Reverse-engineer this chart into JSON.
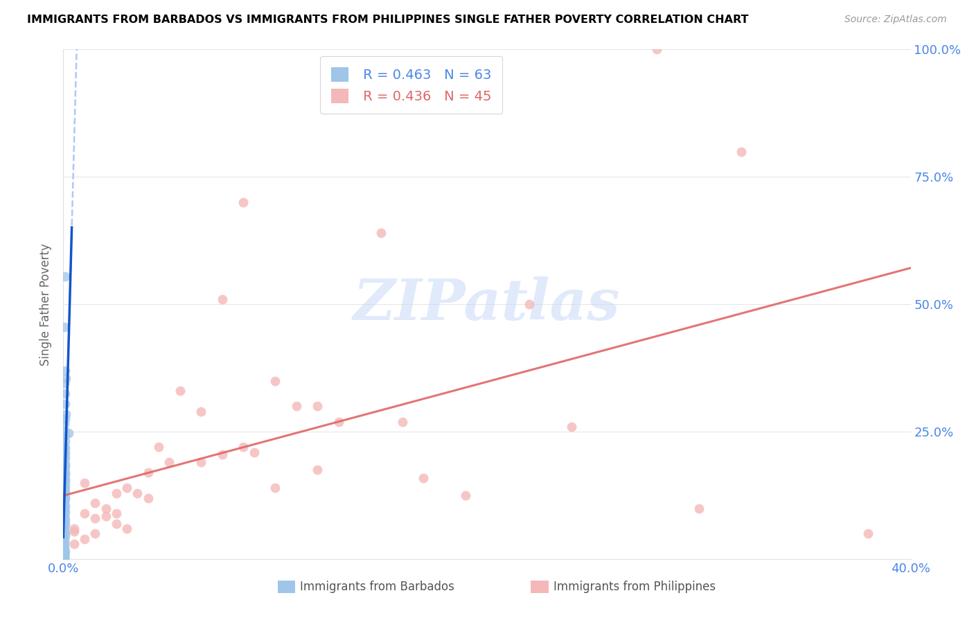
{
  "title": "IMMIGRANTS FROM BARBADOS VS IMMIGRANTS FROM PHILIPPINES SINGLE FATHER POVERTY CORRELATION CHART",
  "source": "Source: ZipAtlas.com",
  "ylabel": "Single Father Poverty",
  "legend_label1": "Immigrants from Barbados",
  "legend_label2": "Immigrants from Philippines",
  "r1": 0.463,
  "n1": 63,
  "r2": 0.436,
  "n2": 45,
  "color1": "#9fc5e8",
  "color2": "#f4b8b8",
  "trendline1_dashed_color": "#a4c2f4",
  "trendline1_solid_color": "#1155cc",
  "trendline2_color": "#e06666",
  "axis_label_color": "#4a86e8",
  "grid_color": "#e0e0e0",
  "background_color": "#ffffff",
  "watermark_text": "ZIPatlas",
  "watermark_color": "#c9daf8",
  "title_color": "#000000",
  "source_color": "#999999",
  "ylabel_color": "#666666",
  "bottom_label_color": "#555555",
  "barbados_x": [
    0.0008,
    0.0005,
    0.001,
    0.0012,
    0.0005,
    0.0008,
    0.001,
    0.0012,
    0.0008,
    0.0005,
    0.0006,
    0.0008,
    0.001,
    0.0005,
    0.0007,
    0.0009,
    0.0005,
    0.0008,
    0.0006,
    0.001,
    0.0008,
    0.0005,
    0.0007,
    0.0009,
    0.0006,
    0.0008,
    0.001,
    0.0005,
    0.0007,
    0.0006,
    0.0008,
    0.0005,
    0.0007,
    0.0009,
    0.0006,
    0.0004,
    0.0007,
    0.0005,
    0.0008,
    0.0006,
    0.0005,
    0.0007,
    0.0006,
    0.0008,
    0.0005,
    0.0006,
    0.0007,
    0.0008,
    0.0005,
    0.0006,
    0.0004,
    0.0005,
    0.0006,
    0.0007,
    0.0005,
    0.0004,
    0.0006,
    0.0005,
    0.0004,
    0.0025,
    0.0005,
    0.0003,
    0.0004
  ],
  "barbados_y": [
    0.555,
    0.455,
    0.37,
    0.355,
    0.345,
    0.325,
    0.305,
    0.285,
    0.275,
    0.265,
    0.252,
    0.242,
    0.232,
    0.222,
    0.218,
    0.21,
    0.207,
    0.2,
    0.195,
    0.188,
    0.182,
    0.178,
    0.172,
    0.168,
    0.163,
    0.158,
    0.152,
    0.148,
    0.143,
    0.138,
    0.133,
    0.128,
    0.123,
    0.118,
    0.113,
    0.108,
    0.103,
    0.098,
    0.093,
    0.088,
    0.083,
    0.078,
    0.073,
    0.068,
    0.063,
    0.058,
    0.052,
    0.046,
    0.04,
    0.035,
    0.03,
    0.025,
    0.02,
    0.015,
    0.013,
    0.01,
    0.008,
    0.005,
    0.003,
    0.248,
    0.01,
    0.005,
    0.002
  ],
  "philippines_x": [
    0.32,
    0.28,
    0.15,
    0.22,
    0.085,
    0.075,
    0.1,
    0.11,
    0.065,
    0.12,
    0.13,
    0.055,
    0.16,
    0.045,
    0.085,
    0.09,
    0.075,
    0.065,
    0.05,
    0.12,
    0.04,
    0.17,
    0.03,
    0.1,
    0.035,
    0.19,
    0.24,
    0.025,
    0.04,
    0.3,
    0.015,
    0.02,
    0.01,
    0.025,
    0.02,
    0.015,
    0.01,
    0.025,
    0.03,
    0.005,
    0.015,
    0.01,
    0.38,
    0.005,
    0.005
  ],
  "philippines_y": [
    0.8,
    1.0,
    0.64,
    0.5,
    0.7,
    0.51,
    0.35,
    0.3,
    0.29,
    0.3,
    0.27,
    0.33,
    0.27,
    0.22,
    0.22,
    0.21,
    0.205,
    0.19,
    0.19,
    0.175,
    0.17,
    0.16,
    0.14,
    0.14,
    0.13,
    0.125,
    0.26,
    0.13,
    0.12,
    0.1,
    0.11,
    0.1,
    0.15,
    0.09,
    0.085,
    0.08,
    0.09,
    0.07,
    0.06,
    0.055,
    0.05,
    0.04,
    0.05,
    0.06,
    0.03
  ],
  "xmin": 0.0,
  "xmax": 0.4,
  "ymin": 0.0,
  "ymax": 1.0,
  "yticks": [
    0.0,
    0.25,
    0.5,
    0.75,
    1.0
  ],
  "ytick_labels_right": [
    "",
    "25.0%",
    "50.0%",
    "75.0%",
    "100.0%"
  ],
  "xtick_positions": [
    0.0,
    0.05,
    0.1,
    0.15,
    0.2,
    0.25,
    0.3,
    0.35,
    0.4
  ],
  "xtick_labels": [
    "0.0%",
    "",
    "",
    "",
    "",
    "",
    "",
    "",
    "40.0%"
  ]
}
